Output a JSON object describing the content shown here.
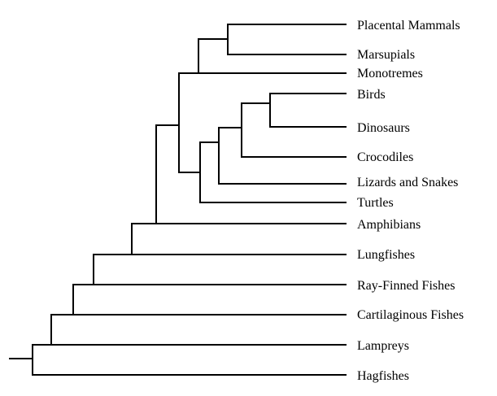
{
  "taxa": [
    "Placental Mammals",
    "Marsupials",
    "Monotremes",
    "Birds",
    "Dinosaurs",
    "Crocodiles",
    "Lizards and Snakes",
    "Turtles",
    "Amphibians",
    "Lungfishes",
    "Ray-Finned Fishes",
    "Cartilaginous Fishes",
    "Lampreys",
    "Hagfishes"
  ],
  "topology": [
    "Hagfishes",
    [
      "Lampreys",
      [
        "Cartilaginous Fishes",
        [
          "Ray-Finned Fishes",
          [
            "Lungfishes",
            [
              "Amphibians",
              [
                [
                  [
                    "Placental Mammals",
                    "Marsupials"
                  ],
                  "Monotremes"
                ],
                [
                  "Turtles",
                  [
                    "Lizards and Snakes",
                    [
                      "Crocodiles",
                      [
                        "Birds",
                        "Dinosaurs"
                      ]
                    ]
                  ]
                ]
              ]
            ]
          ]
        ]
      ]
    ]
  ],
  "colors": {
    "line": "#000000",
    "text": "#000000",
    "background": "#ffffff"
  }
}
